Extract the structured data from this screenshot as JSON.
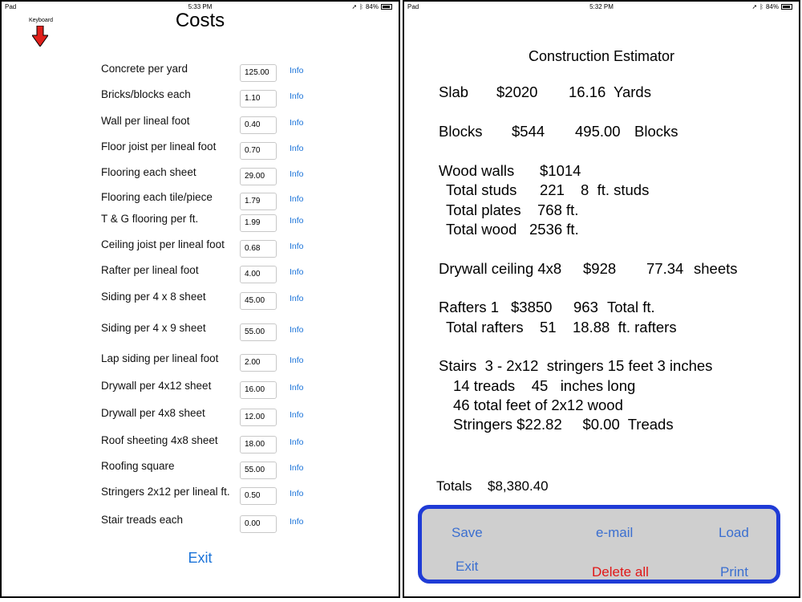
{
  "left": {
    "status": {
      "carrier": "Pad",
      "time": "5:33 PM",
      "battery": "84%"
    },
    "keyboard_label": "Keyboard",
    "title": "Costs",
    "info_label": "Info",
    "exit_label": "Exit",
    "rows": [
      {
        "label": "Concrete per yard",
        "value": "125.00"
      },
      {
        "label": "Bricks/blocks each",
        "value": "1.10"
      },
      {
        "label": "Wall per lineal foot",
        "value": "0.40"
      },
      {
        "label": "Floor joist per lineal foot",
        "value": "0.70"
      },
      {
        "label": "Flooring each sheet",
        "value": "29.00"
      },
      {
        "label": "Flooring each tile/piece",
        "value": "1.79"
      },
      {
        "label": "T & G flooring per ft.",
        "value": "1.99"
      },
      {
        "label": "Ceiling joist per lineal foot",
        "value": "0.68"
      },
      {
        "label": "Rafter per lineal foot",
        "value": "4.00"
      },
      {
        "label": "Siding per 4 x 8 sheet",
        "value": "45.00"
      },
      {
        "label": "Siding per 4 x 9 sheet",
        "value": "55.00"
      },
      {
        "label": "Lap siding per lineal foot",
        "value": "2.00"
      },
      {
        "label": "Drywall per 4x12 sheet",
        "value": "16.00"
      },
      {
        "label": "Drywall per 4x8 sheet",
        "value": "12.00"
      },
      {
        "label": "Roof sheeting 4x8 sheet",
        "value": "18.00"
      },
      {
        "label": "Roofing square",
        "value": "55.00"
      },
      {
        "label": "Stringers 2x12 per lineal ft.",
        "value": "0.50"
      },
      {
        "label": "Stair treads each",
        "value": "0.00"
      }
    ]
  },
  "right": {
    "status": {
      "carrier": "Pad",
      "time": "5:32 PM",
      "battery": "84%"
    },
    "title": "Construction Estimator",
    "slab": {
      "label": "Slab",
      "cost": "$2020",
      "qty": "16.16",
      "unit": "Yards"
    },
    "blocks": {
      "label": "Blocks",
      "cost": "$544",
      "qty": "495.00",
      "unit": "Blocks"
    },
    "wood": {
      "label": "Wood walls",
      "cost": "$1014",
      "studs_label": "Total studs",
      "studs_qty": "221",
      "studs_unit": "8  ft. studs",
      "plates_label": "Total plates",
      "plates_value": "768 ft.",
      "wood_label": "Total wood",
      "wood_value": "2536 ft."
    },
    "drywall": {
      "label": "Drywall ceiling 4x8",
      "cost": "$928",
      "qty": "77.34",
      "unit": "sheets"
    },
    "rafters": {
      "label": "Rafters 1",
      "cost": "$3850",
      "qty": "963",
      "unit": "Total ft.",
      "total_label": "Total rafters",
      "total_qty": "51",
      "total_ft": "18.88  ft. rafters"
    },
    "stairs": {
      "line1": "Stairs  3 - 2x12  stringers 15 feet 3 inches",
      "line2": "14 treads    45   inches long",
      "line3": "46 total feet of 2x12 wood",
      "line4": "Stringers $22.82     $0.00  Treads"
    },
    "totals_label": "Totals",
    "totals_value": "$8,380.40",
    "actions": {
      "save": "Save",
      "email": "e-mail",
      "load": "Load",
      "exit": "Exit",
      "delete_all": "Delete all",
      "print": "Print"
    }
  }
}
